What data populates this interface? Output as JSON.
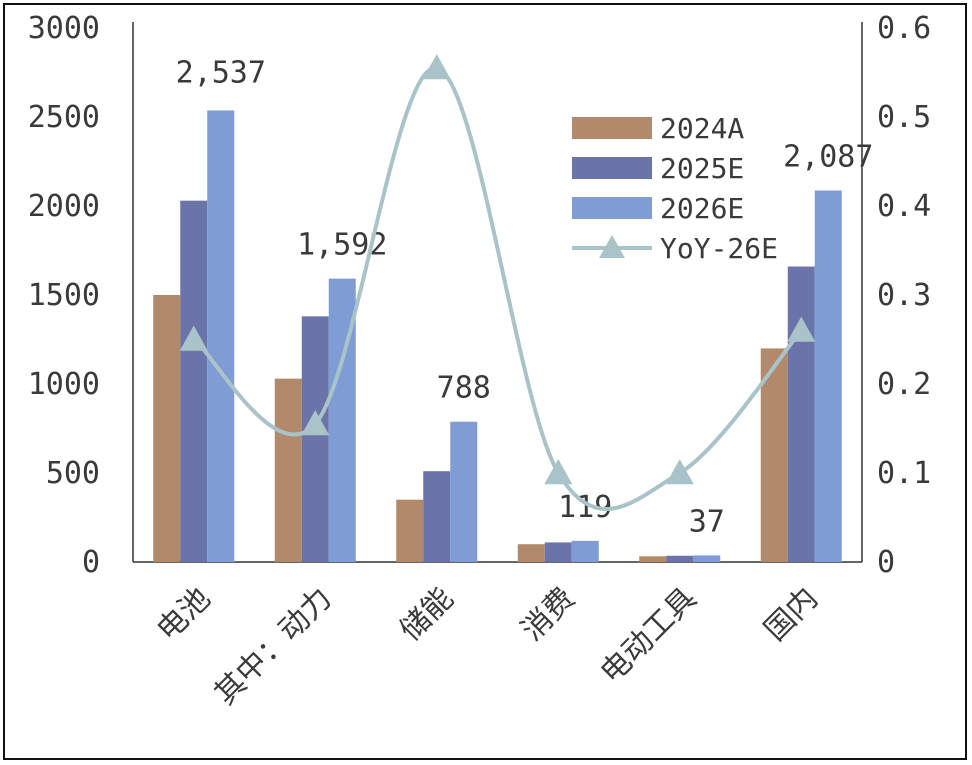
{
  "chart_data": {
    "type": "bar",
    "categories": [
      "电池",
      "其中：动力",
      "储能",
      "消费",
      "电动工具",
      "国内"
    ],
    "series": [
      {
        "name": "2024A",
        "type": "bar",
        "axis": "left",
        "color": "#B08A6A",
        "values": [
          1500,
          1030,
          350,
          100,
          32,
          1200
        ]
      },
      {
        "name": "2025E",
        "type": "bar",
        "axis": "left",
        "color": "#6A74A8",
        "values": [
          2030,
          1380,
          510,
          110,
          35,
          1660
        ]
      },
      {
        "name": "2026E",
        "type": "bar",
        "axis": "left",
        "color": "#7F9DD4",
        "values": [
          2537,
          1592,
          788,
          119,
          37,
          2087
        ]
      },
      {
        "name": "YoY-26E",
        "type": "line",
        "axis": "right",
        "color": "#A9C3C8",
        "values": [
          0.25,
          0.155,
          0.555,
          0.1,
          0.1,
          0.26
        ]
      }
    ],
    "data_labels": [
      "2,537",
      "1,592",
      "788",
      "119",
      "37",
      "2,087"
    ],
    "y_left": {
      "ylim": [
        0,
        3000
      ],
      "ticks": [
        "0",
        "500",
        "1000",
        "1500",
        "2000",
        "2500",
        "3000"
      ]
    },
    "y_right": {
      "ylim": [
        0,
        0.6
      ],
      "ticks": [
        "0",
        "0.1",
        "0.2",
        "0.3",
        "0.4",
        "0.5",
        "0.6"
      ]
    },
    "legend_position": "top-right",
    "grid": false
  }
}
